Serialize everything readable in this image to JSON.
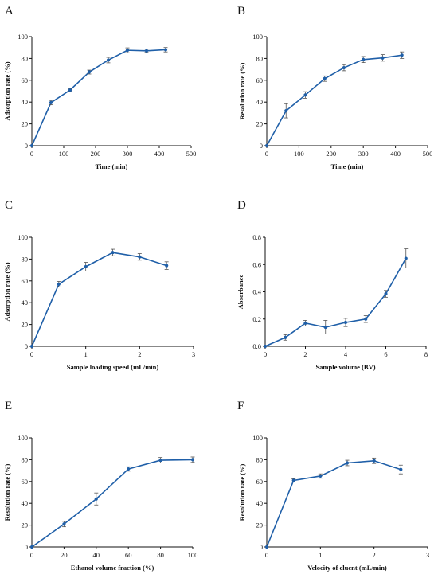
{
  "chart_data": [
    {
      "panel": "A",
      "type": "line",
      "xlabel": "Time (min)",
      "ylabel": "Adsorption rate (%)",
      "xlim": [
        0,
        500
      ],
      "ylim": [
        0,
        100
      ],
      "xticks": [
        0,
        100,
        200,
        300,
        400,
        500
      ],
      "yticks": [
        0,
        20,
        40,
        60,
        80,
        100
      ],
      "x": [
        0,
        60,
        120,
        180,
        240,
        300,
        360,
        420
      ],
      "y": [
        0,
        39.5,
        51,
        67.5,
        78.5,
        87.5,
        87,
        88
      ],
      "err": [
        0,
        2,
        1.2,
        1.8,
        2.5,
        2.2,
        1.5,
        2
      ]
    },
    {
      "panel": "B",
      "type": "line",
      "xlabel": "Time (min)",
      "ylabel": "Resolution rate (%)",
      "xlim": [
        0,
        500
      ],
      "ylim": [
        0,
        100
      ],
      "xticks": [
        0,
        100,
        200,
        300,
        400,
        500
      ],
      "yticks": [
        0,
        20,
        40,
        60,
        80,
        100
      ],
      "x": [
        0,
        60,
        120,
        180,
        240,
        300,
        360,
        420
      ],
      "y": [
        0,
        32,
        46.5,
        61.5,
        71.5,
        79,
        80.5,
        83
      ],
      "err": [
        0,
        6.5,
        3,
        2.5,
        2.8,
        2.8,
        3,
        3
      ]
    },
    {
      "panel": "C",
      "type": "line",
      "xlabel": "Sample loading speed (mL/min)",
      "ylabel": "Adsorption rate (%)",
      "xlim": [
        0,
        3
      ],
      "ylim": [
        0,
        100
      ],
      "xticks": [
        0,
        1,
        2,
        3
      ],
      "yticks": [
        0,
        20,
        40,
        60,
        80,
        100
      ],
      "x": [
        0,
        0.5,
        1,
        1.5,
        2,
        2.5
      ],
      "y": [
        0,
        57,
        73,
        86,
        82,
        74
      ],
      "err": [
        0,
        2.5,
        4,
        3,
        3,
        3.5
      ]
    },
    {
      "panel": "D",
      "type": "line",
      "xlabel": "Sample volume (BV)",
      "ylabel": "Absorbance",
      "xlim": [
        0,
        8
      ],
      "ylim": [
        0,
        0.8
      ],
      "xticks": [
        0,
        2,
        4,
        6,
        8
      ],
      "yticks": [
        0.0,
        0.2,
        0.4,
        0.6,
        0.8
      ],
      "ytick_labels": [
        "0.0",
        "0.2",
        "0.4",
        "0.6",
        "0.8"
      ],
      "x": [
        0,
        1,
        2,
        3,
        4,
        5,
        6,
        7
      ],
      "y": [
        0,
        0.065,
        0.17,
        0.14,
        0.175,
        0.2,
        0.385,
        0.645
      ],
      "err": [
        0,
        0.02,
        0.02,
        0.05,
        0.03,
        0.025,
        0.025,
        0.07
      ]
    },
    {
      "panel": "E",
      "type": "line",
      "xlabel": "Ethanol volume fraction (%)",
      "ylabel": "Resolution rate (%)",
      "xlim": [
        0,
        100
      ],
      "ylim": [
        0,
        100
      ],
      "xticks": [
        0,
        20,
        40,
        60,
        80,
        100
      ],
      "yticks": [
        0,
        20,
        40,
        60,
        80,
        100
      ],
      "x": [
        0,
        20,
        40,
        60,
        80,
        100
      ],
      "y": [
        0,
        21,
        44,
        71.5,
        79.5,
        80
      ],
      "err": [
        0,
        2.5,
        5.5,
        2,
        2.5,
        2.5
      ]
    },
    {
      "panel": "F",
      "type": "line",
      "xlabel": "Velocity of eluent (mL/min)",
      "ylabel": "Resolution rate (%)",
      "xlim": [
        0,
        3
      ],
      "ylim": [
        0,
        100
      ],
      "xticks": [
        0,
        1,
        2,
        3
      ],
      "yticks": [
        0,
        20,
        40,
        60,
        80,
        100
      ],
      "x": [
        0,
        0.5,
        1,
        1.5,
        2,
        2.5
      ],
      "y": [
        0,
        61,
        65,
        77,
        79,
        71
      ],
      "err": [
        0,
        1.5,
        2,
        2.5,
        2.5,
        4
      ]
    }
  ],
  "style": {
    "line_color": "#1f5fa8",
    "axis_color": "#111111",
    "error_color": "#555555"
  }
}
